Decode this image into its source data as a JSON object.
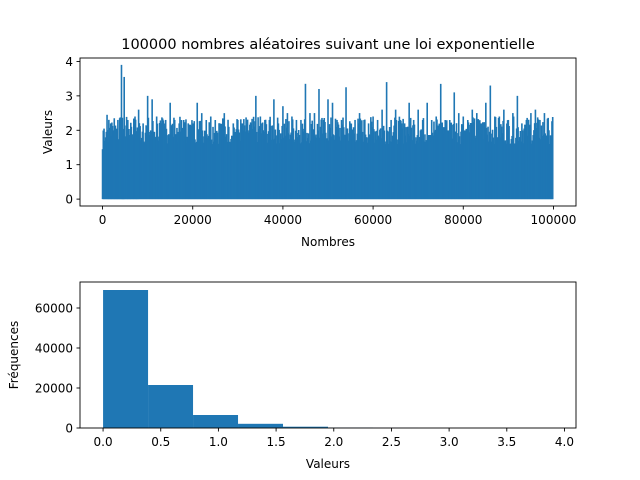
{
  "chart_data": [
    {
      "type": "line",
      "title": "100000 nombres aléatoires suivant une loi exponentielle",
      "xlabel": "Nombres",
      "ylabel": "Valeurs",
      "xlim": [
        -5000,
        105000
      ],
      "ylim": [
        -0.2,
        4.1
      ],
      "xticks": [
        0,
        20000,
        40000,
        60000,
        80000,
        100000
      ],
      "yticks": [
        0,
        1,
        2,
        3,
        4
      ],
      "color": "#1f77b4",
      "series": [
        {
          "x": [
            0,
            1000,
            1800,
            2600,
            3400,
            4200,
            4800,
            5600,
            6400,
            7200,
            8000,
            9000,
            10000,
            11000,
            12000,
            13000,
            14000,
            15000,
            16000,
            17000,
            18000,
            19000,
            20000,
            21000,
            22000,
            23000,
            24000,
            25000,
            26000,
            27000,
            28000,
            29000,
            30000,
            31000,
            32000,
            33000,
            34000,
            35000,
            36000,
            37000,
            38000,
            39000,
            40000,
            41000,
            42000,
            43000,
            44000,
            45000,
            46000,
            47000,
            48000,
            49000,
            50000,
            51000,
            52000,
            53000,
            54000,
            55000,
            56000,
            57000,
            58000,
            59000,
            60000,
            61000,
            62000,
            63000,
            64000,
            65000,
            66000,
            67000,
            68000,
            69000,
            70000,
            71000,
            72000,
            73000,
            74000,
            75000,
            76000,
            77000,
            78000,
            79000,
            80000,
            81000,
            82000,
            83000,
            84000,
            85000,
            86000,
            87000,
            88000,
            89000,
            90000,
            91000,
            92000,
            93000,
            94000,
            95000,
            96000,
            97000,
            98000,
            99000,
            100000
          ],
          "y": [
            1.45,
            2.45,
            2.2,
            2.35,
            2.3,
            3.9,
            3.55,
            2.3,
            2.1,
            2.4,
            2.6,
            2.2,
            3.0,
            2.9,
            2.4,
            2.2,
            2.3,
            2.8,
            2.3,
            2.2,
            2.3,
            2.2,
            2.2,
            2.8,
            2.5,
            2.3,
            2.4,
            2.3,
            2.2,
            2.5,
            2.1,
            2.2,
            2.3,
            2.2,
            2.3,
            2.2,
            3.0,
            2.4,
            2.3,
            2.3,
            2.9,
            2.2,
            2.7,
            2.5,
            2.4,
            2.3,
            2.3,
            3.35,
            2.5,
            2.5,
            3.2,
            2.3,
            2.9,
            2.8,
            2.3,
            2.3,
            3.25,
            2.2,
            2.3,
            2.5,
            2.3,
            2.2,
            2.4,
            2.3,
            2.6,
            3.4,
            2.3,
            2.6,
            2.3,
            2.2,
            2.8,
            2.3,
            2.6,
            2.3,
            2.8,
            2.3,
            2.4,
            3.35,
            2.3,
            2.3,
            3.1,
            2.5,
            2.4,
            2.3,
            2.6,
            2.5,
            2.2,
            2.8,
            3.3,
            2.4,
            2.4,
            2.6,
            2.3,
            2.5,
            3.0,
            2.2,
            2.3,
            2.5,
            2.6,
            2.3,
            2.5,
            2.0,
            1.45
          ]
        }
      ]
    },
    {
      "type": "bar",
      "title": "",
      "xlabel": "Valeurs",
      "ylabel": "Fréquences",
      "xlim": [
        -0.2,
        4.1
      ],
      "ylim": [
        0,
        73000
      ],
      "xticks": [
        0.0,
        0.5,
        1.0,
        1.5,
        2.0,
        2.5,
        3.0,
        3.5,
        4.0
      ],
      "yticks": [
        0,
        20000,
        40000,
        60000
      ],
      "color": "#1f77b4",
      "bin_edges": [
        0.0,
        0.39,
        0.78,
        1.17,
        1.56,
        1.95,
        2.34,
        2.73,
        3.12,
        3.51,
        3.9
      ],
      "values": [
        69000,
        21500,
        6500,
        2100,
        650,
        200,
        60,
        15,
        3,
        1
      ]
    }
  ]
}
